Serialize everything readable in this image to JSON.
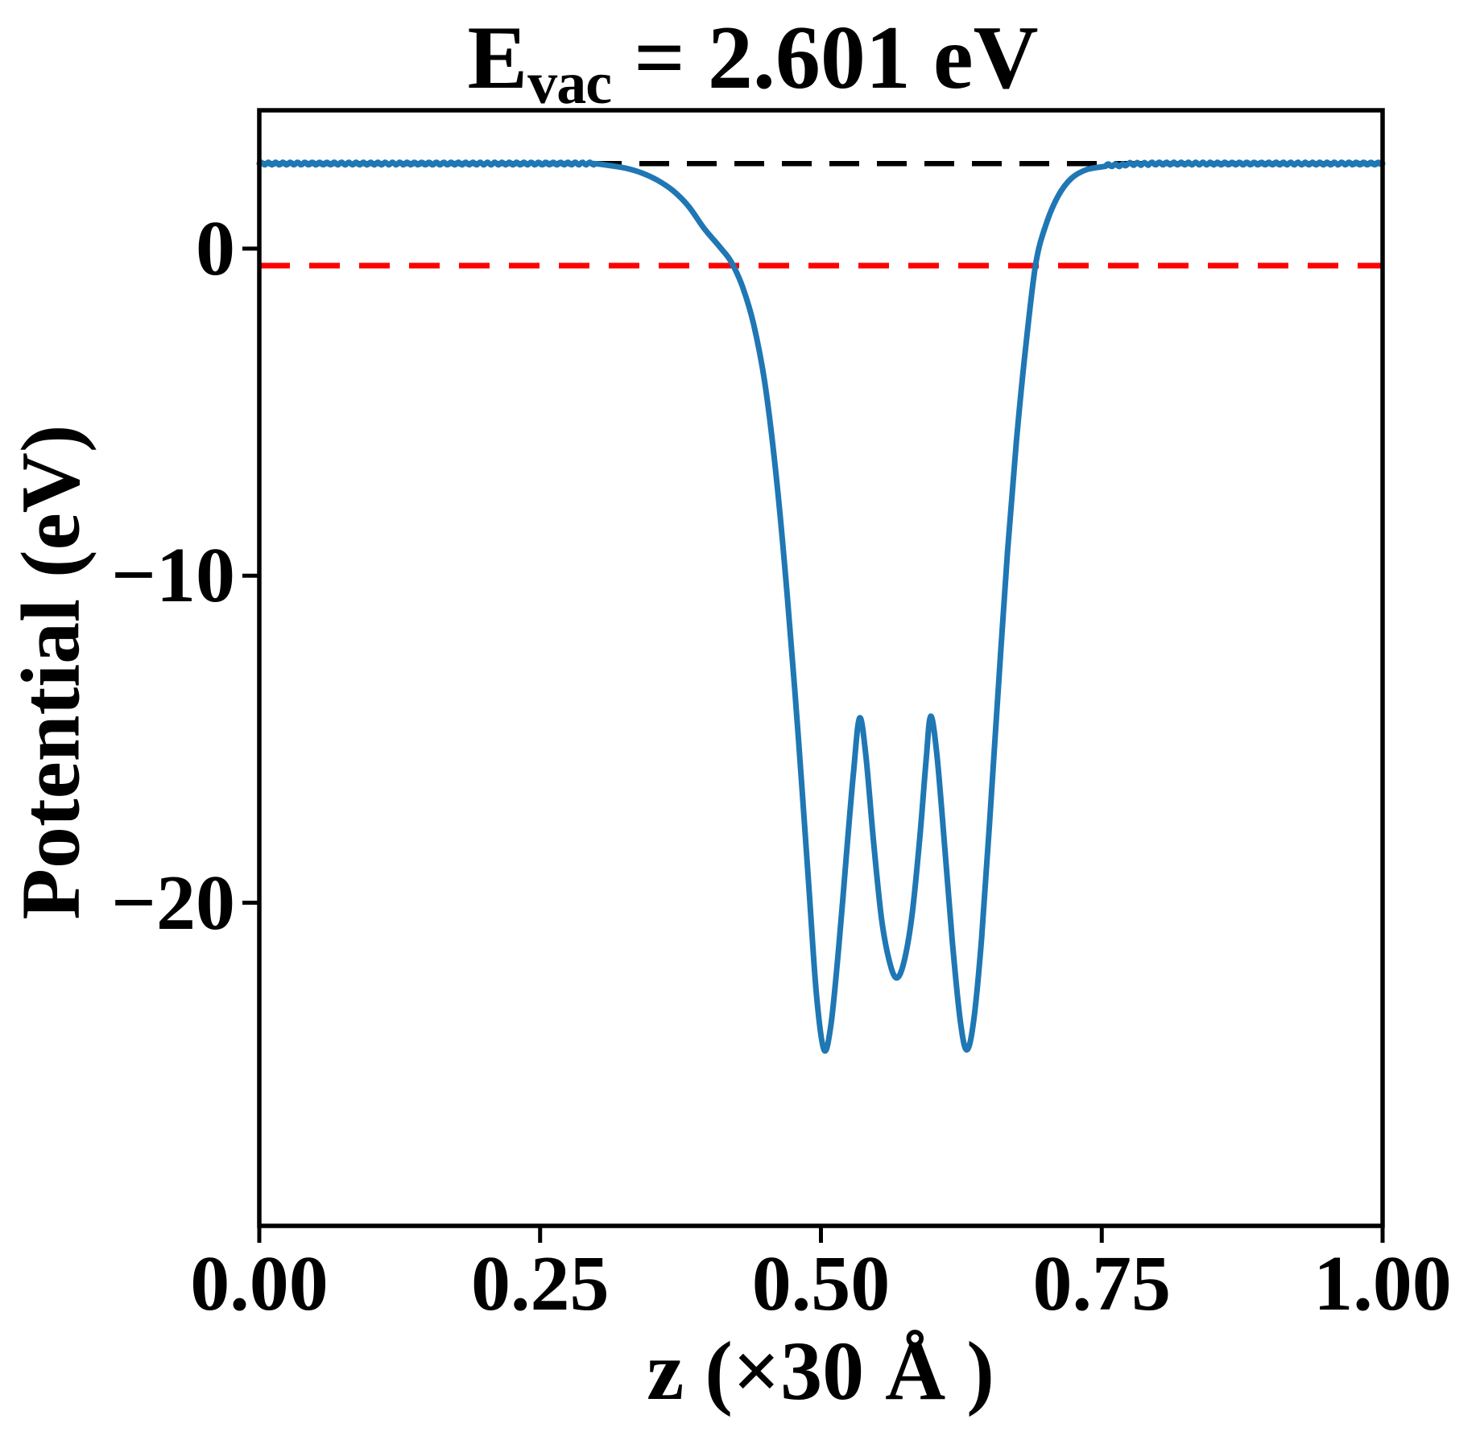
{
  "title": {
    "base": "E",
    "sub": "vac",
    "rest": " = 2.601 eV"
  },
  "axes": {
    "xlabel": "z (×30 Å )",
    "ylabel": "Potential (eV)",
    "x_ticks": [
      {
        "value": 0.0,
        "label": "0.00"
      },
      {
        "value": 0.25,
        "label": "0.25"
      },
      {
        "value": 0.5,
        "label": "0.50"
      },
      {
        "value": 0.75,
        "label": "0.75"
      },
      {
        "value": 1.0,
        "label": "1.00"
      }
    ],
    "y_ticks": [
      {
        "value": 0,
        "label": "0"
      },
      {
        "value": -10,
        "label": "−10"
      },
      {
        "value": -20,
        "label": "−20"
      }
    ]
  },
  "chart_data": {
    "type": "line",
    "title": "E_vac = 2.601 eV",
    "xlabel": "z (×30 Å )",
    "ylabel": "Potential (eV)",
    "xlim": [
      0,
      1
    ],
    "ylim": [
      -29.88,
      4.23
    ],
    "grid": false,
    "legend": "none",
    "series": [
      {
        "name": "planar averaged electrostatic potential",
        "color": "#1f77b4",
        "style": "solid",
        "line_width": 7,
        "points": [
          [
            0.0,
            2.601
          ],
          [
            0.298,
            2.601
          ],
          [
            0.312,
            2.54
          ],
          [
            0.326,
            2.46
          ],
          [
            0.34,
            2.32
          ],
          [
            0.354,
            2.1
          ],
          [
            0.368,
            1.78
          ],
          [
            0.382,
            1.3
          ],
          [
            0.396,
            0.62
          ],
          [
            0.41,
            0.05
          ],
          [
            0.42,
            -0.4
          ],
          [
            0.43,
            -1.15
          ],
          [
            0.44,
            -2.3
          ],
          [
            0.45,
            -4.1
          ],
          [
            0.46,
            -6.9
          ],
          [
            0.47,
            -10.6
          ],
          [
            0.48,
            -15.0
          ],
          [
            0.489,
            -19.4
          ],
          [
            0.496,
            -22.8
          ],
          [
            0.5028,
            -24.5
          ],
          [
            0.509,
            -23.7
          ],
          [
            0.516,
            -21.3
          ],
          [
            0.523,
            -18.4
          ],
          [
            0.529,
            -16.0
          ],
          [
            0.5344,
            -14.35
          ],
          [
            0.54,
            -15.5
          ],
          [
            0.547,
            -18.2
          ],
          [
            0.554,
            -20.5
          ],
          [
            0.561,
            -21.8
          ],
          [
            0.5674,
            -22.3
          ],
          [
            0.574,
            -21.8
          ],
          [
            0.581,
            -20.4
          ],
          [
            0.588,
            -18.0
          ],
          [
            0.5935,
            -15.7
          ],
          [
            0.5976,
            -14.3
          ],
          [
            0.603,
            -15.4
          ],
          [
            0.61,
            -18.2
          ],
          [
            0.617,
            -21.2
          ],
          [
            0.624,
            -23.6
          ],
          [
            0.6298,
            -24.5
          ],
          [
            0.636,
            -23.6
          ],
          [
            0.643,
            -21.1
          ],
          [
            0.65,
            -17.6
          ],
          [
            0.658,
            -13.4
          ],
          [
            0.666,
            -9.3
          ],
          [
            0.674,
            -5.9
          ],
          [
            0.682,
            -3.1
          ],
          [
            0.691,
            -0.52
          ],
          [
            0.7,
            0.7
          ],
          [
            0.711,
            1.6
          ],
          [
            0.723,
            2.15
          ],
          [
            0.737,
            2.42
          ],
          [
            0.753,
            2.55
          ],
          [
            0.772,
            2.59
          ],
          [
            0.792,
            2.601
          ],
          [
            1.0,
            2.601
          ]
        ],
        "ripple": {
          "flat_min": 2.55,
          "amplitude": 0.04,
          "wavelength": 0.0065,
          "step": 0.0016
        }
      },
      {
        "name": "vacuum level (E_vac)",
        "color": "#000000",
        "style": "dashed",
        "line_width": 6.5,
        "dash": [
          37,
          22
        ],
        "y": 2.601
      },
      {
        "name": "red dashed reference level",
        "color": "#ff0000",
        "style": "dashed",
        "line_width": 7,
        "dash": [
          38,
          24
        ],
        "y": -0.52
      }
    ]
  },
  "colors": {
    "curve": "#1f77b4",
    "vacuum_line": "#000000",
    "reference_line": "#ff0000",
    "frame": "#000000",
    "background": "#ffffff"
  }
}
